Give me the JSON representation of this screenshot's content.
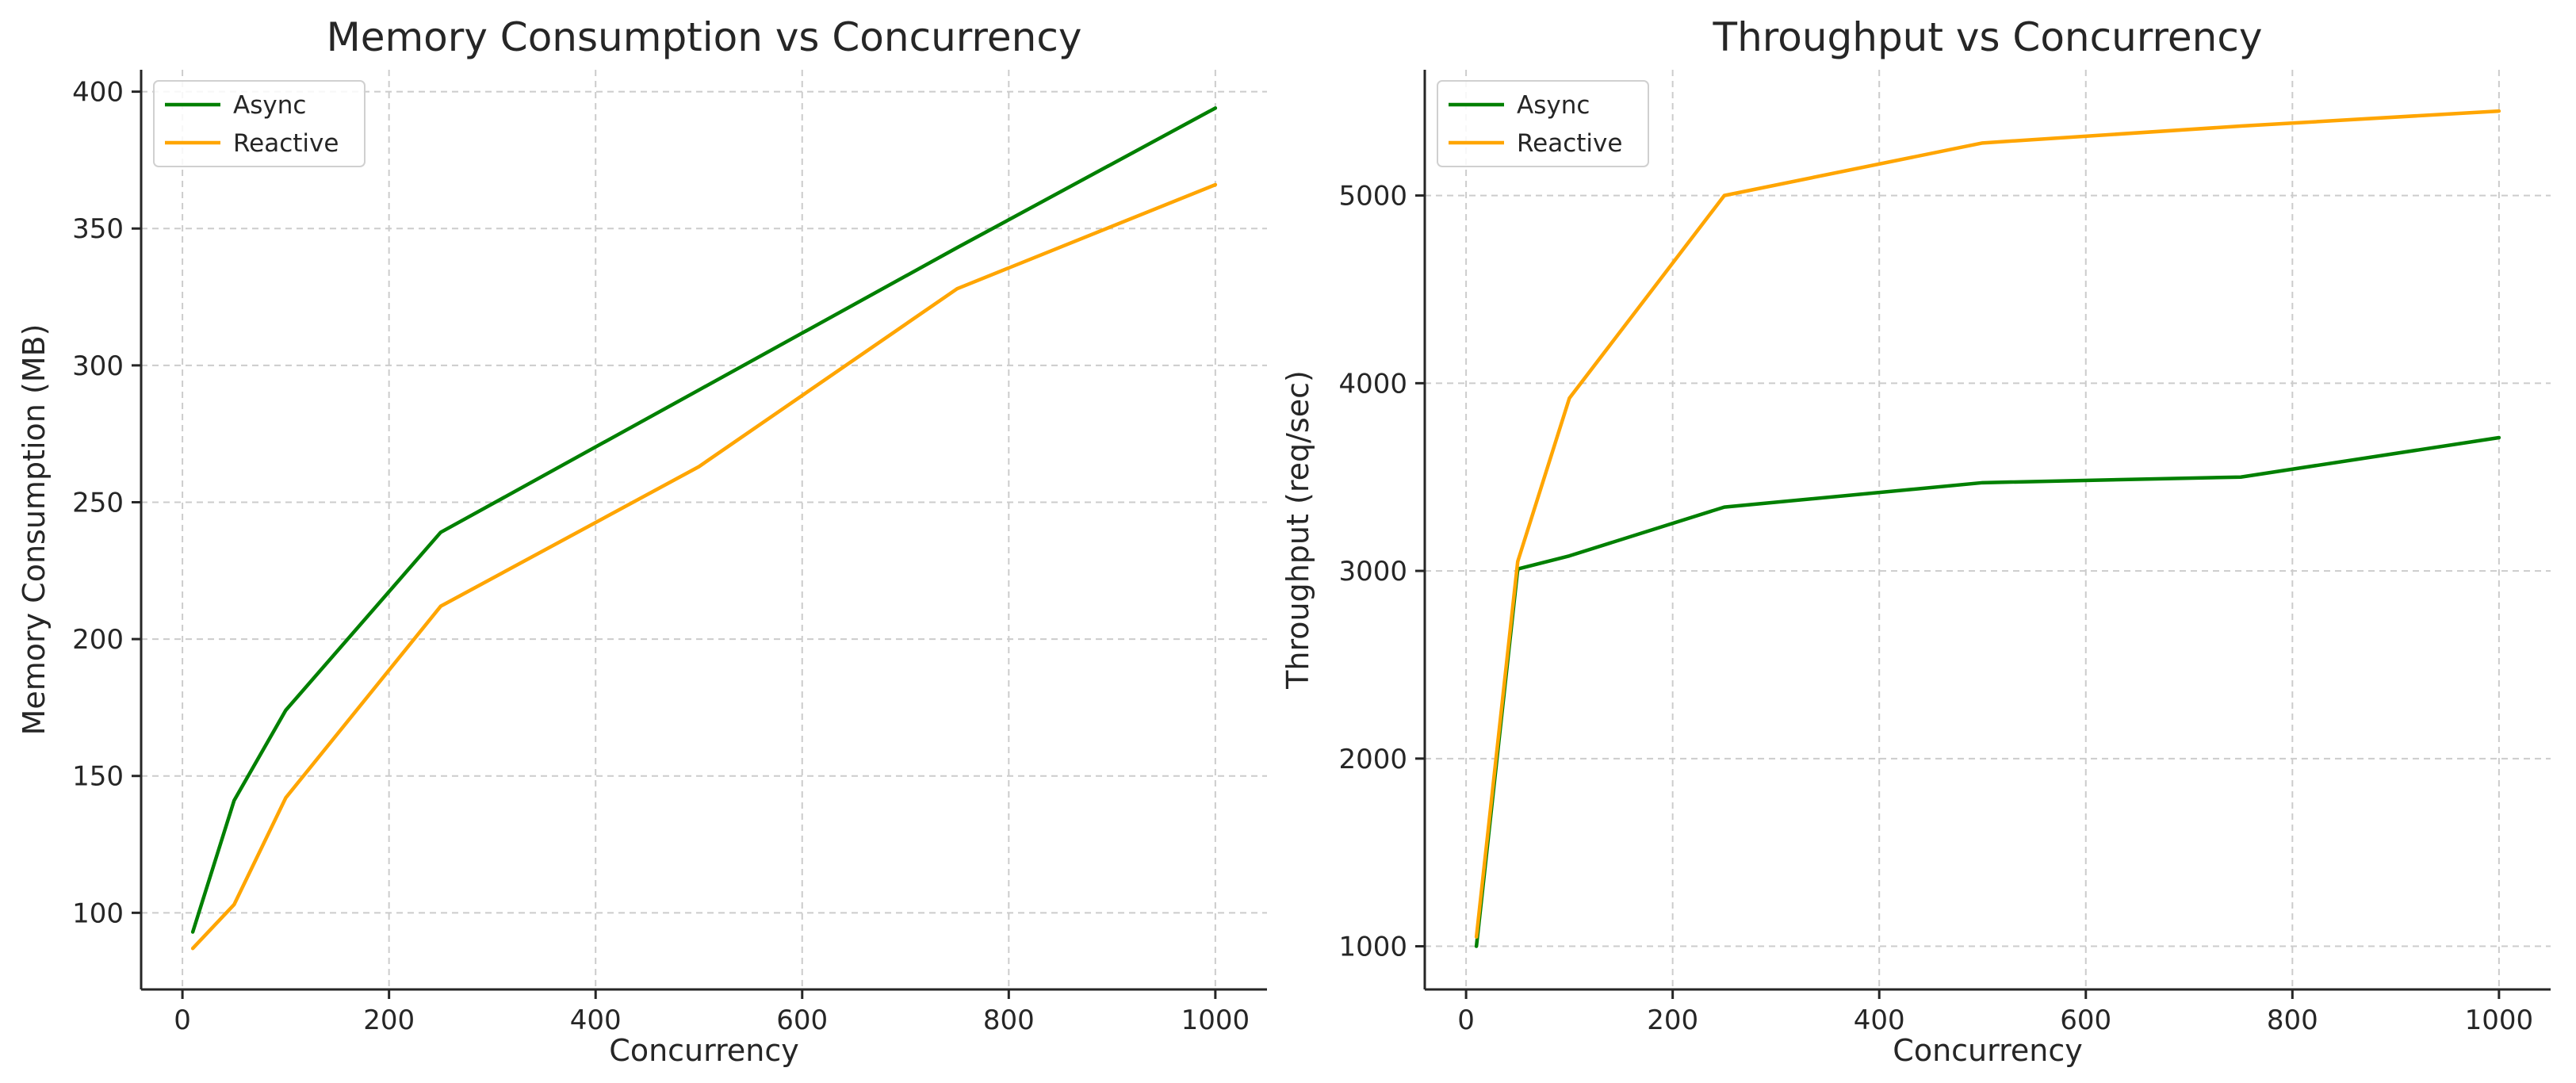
{
  "chart_data": [
    {
      "type": "line",
      "title": "Memory Consumption vs Concurrency",
      "xlabel": "Concurrency",
      "ylabel": "Memory Consumption (MB)",
      "xlim": [
        -40,
        1050
      ],
      "ylim": [
        72,
        408
      ],
      "xticks": [
        0,
        200,
        400,
        600,
        800,
        1000
      ],
      "yticks": [
        100,
        150,
        200,
        250,
        300,
        350,
        400
      ],
      "grid": true,
      "legend": "top-left",
      "series": [
        {
          "name": "Async",
          "color": "#008000",
          "x": [
            10,
            50,
            100,
            250,
            500,
            750,
            1000
          ],
          "y": [
            93,
            141,
            174,
            239,
            291,
            343,
            394
          ]
        },
        {
          "name": "Reactive",
          "color": "#FFA500",
          "x": [
            10,
            50,
            100,
            250,
            500,
            750,
            1000
          ],
          "y": [
            87,
            103,
            142,
            212,
            263,
            328,
            366
          ]
        }
      ]
    },
    {
      "type": "line",
      "title": "Throughput vs Concurrency",
      "xlabel": "Concurrency",
      "ylabel": "Throughput (req/sec)",
      "xlim": [
        -40,
        1050
      ],
      "ylim": [
        770,
        5670
      ],
      "xticks": [
        0,
        200,
        400,
        600,
        800,
        1000
      ],
      "yticks": [
        1000,
        2000,
        3000,
        4000,
        5000
      ],
      "grid": true,
      "legend": "top-left",
      "series": [
        {
          "name": "Async",
          "color": "#008000",
          "x": [
            10,
            50,
            100,
            250,
            500,
            750,
            1000
          ],
          "y": [
            1000,
            3010,
            3080,
            3340,
            3470,
            3500,
            3710
          ]
        },
        {
          "name": "Reactive",
          "color": "#FFA500",
          "x": [
            10,
            50,
            100,
            250,
            500,
            750,
            1000
          ],
          "y": [
            1050,
            3050,
            3920,
            5000,
            5280,
            5370,
            5450
          ]
        }
      ]
    }
  ]
}
